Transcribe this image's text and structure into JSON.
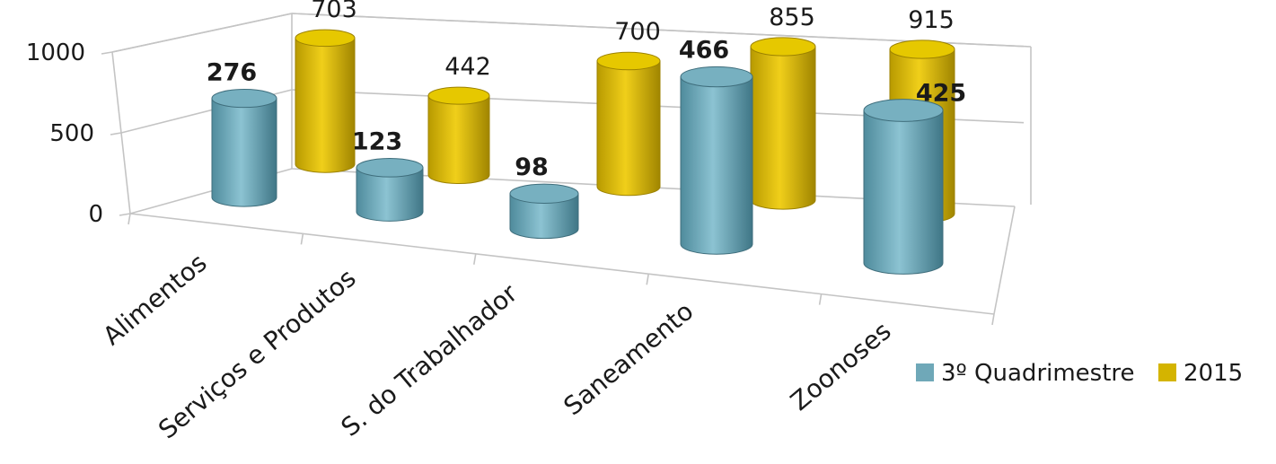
{
  "chart_data": {
    "type": "bar",
    "style": "3d-cylinder",
    "categories": [
      "Alimentos",
      "Serviços e Produtos",
      "S. do Trabalhador",
      "Saneamento",
      "Zoonoses"
    ],
    "series": [
      {
        "name": "3º Quadrimestre",
        "values": [
          276,
          123,
          98,
          466,
          425
        ],
        "color": "#6fa8b8"
      },
      {
        "name": "2015",
        "values": [
          703,
          442,
          700,
          855,
          915
        ],
        "color": "#d4b400"
      }
    ],
    "title": "",
    "xlabel": "",
    "ylabel": "",
    "yticks": [
      "0",
      "500",
      "1000"
    ],
    "ylim": [
      0,
      1000
    ],
    "grid": true,
    "legend": "bottom-right"
  }
}
